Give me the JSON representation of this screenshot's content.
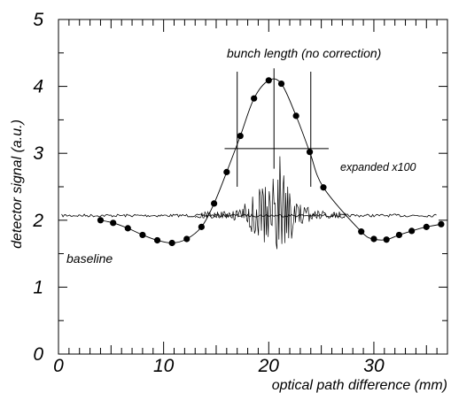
{
  "chart_data": {
    "type": "scatter",
    "xlabel": "optical path difference (mm)",
    "ylabel": "detector signal (a.u.)",
    "xlim": [
      0,
      37
    ],
    "ylim": [
      0,
      5
    ],
    "x_ticks": [
      "0",
      "10",
      "20",
      "30"
    ],
    "y_ticks": [
      "0",
      "1",
      "2",
      "3",
      "4",
      "5"
    ],
    "grid": false,
    "series": [
      {
        "points": [
          [
            4,
            2.0
          ],
          [
            5.2,
            1.96
          ],
          [
            6.6,
            1.88
          ],
          [
            8.0,
            1.78
          ],
          [
            9.4,
            1.7
          ],
          [
            10.8,
            1.66
          ],
          [
            12.2,
            1.72
          ],
          [
            13.6,
            1.9
          ],
          [
            14.8,
            2.25
          ],
          [
            16.0,
            2.72
          ],
          [
            17.3,
            3.26
          ],
          [
            18.6,
            3.82
          ],
          [
            20.0,
            4.09
          ],
          [
            21.2,
            4.04
          ],
          [
            22.6,
            3.56
          ],
          [
            23.9,
            3.02
          ],
          [
            25.2,
            2.49
          ],
          [
            28.8,
            1.83
          ],
          [
            30.0,
            1.72
          ],
          [
            31.2,
            1.71
          ],
          [
            32.4,
            1.78
          ],
          [
            33.6,
            1.84
          ],
          [
            35.0,
            1.9
          ],
          [
            36.4,
            1.94
          ]
        ]
      }
    ],
    "baseline_level": 2.07,
    "fwhm_marker": {
      "x_left": 17.0,
      "x_right": 24.0,
      "x_center": 20.5,
      "y": 3.07,
      "h_left": 15.8,
      "h_right": 25.7,
      "vline_top": 4.22,
      "vline_bottom": 2.5
    },
    "annotations": {
      "bunch_length": "bunch length (no correction)",
      "expanded": "expanded x100",
      "baseline": "baseline"
    }
  }
}
